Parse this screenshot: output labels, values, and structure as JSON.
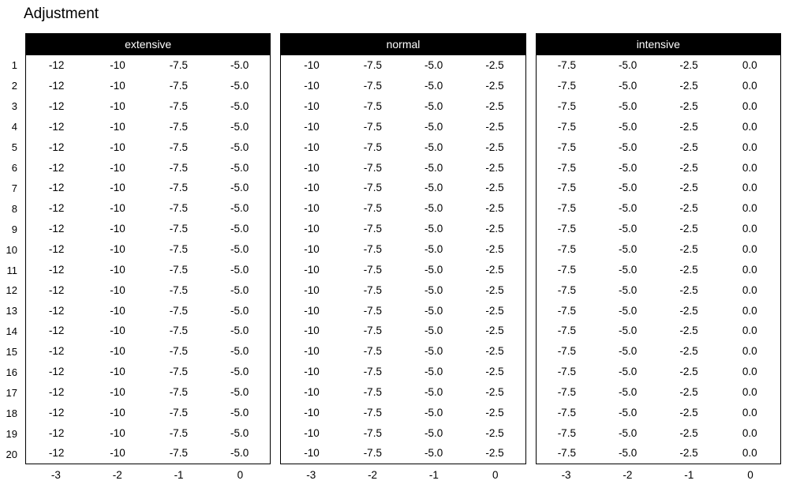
{
  "title": "Adjustment",
  "chart_data": {
    "type": "table",
    "title": "Adjustment",
    "row_labels": [
      "1",
      "2",
      "3",
      "4",
      "5",
      "6",
      "7",
      "8",
      "9",
      "10",
      "11",
      "12",
      "13",
      "14",
      "15",
      "16",
      "17",
      "18",
      "19",
      "20"
    ],
    "col_labels": [
      "-3",
      "-2",
      "-1",
      "0"
    ],
    "rows_per_table": 20,
    "all_rows_identical": true,
    "tables": [
      {
        "name": "extensive",
        "cell_values": [
          "-12",
          "-10",
          "-7.5",
          "-5.0"
        ]
      },
      {
        "name": "normal",
        "cell_values": [
          "-10",
          "-7.5",
          "-5.0",
          "-2.5"
        ]
      },
      {
        "name": "intensive",
        "cell_values": [
          "-7.5",
          "-5.0",
          "-2.5",
          "0.0"
        ]
      }
    ]
  },
  "colors": {
    "background": "#ffffff",
    "header_bg": "#000000",
    "header_text": "#ffffff",
    "text": "#000000",
    "border": "#000000"
  }
}
